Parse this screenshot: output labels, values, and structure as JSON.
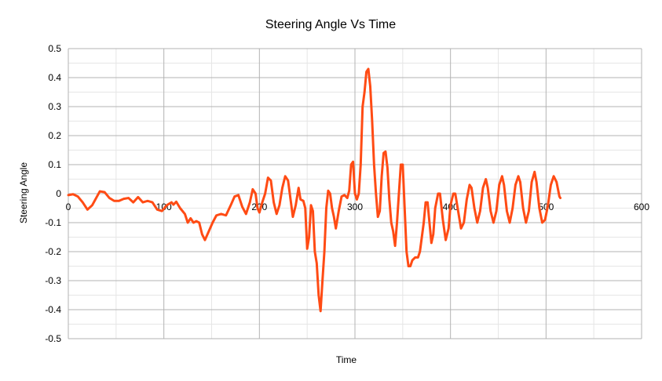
{
  "chart_data": {
    "type": "line",
    "title": "Steering Angle Vs Time",
    "xlabel": "Time",
    "ylabel": "Steering Angle",
    "xlim": [
      0,
      600
    ],
    "ylim": [
      -0.5,
      0.5
    ],
    "x_ticks": [
      "0",
      "100",
      "200",
      "300",
      "400",
      "500",
      "600"
    ],
    "y_ticks": [
      "0.5",
      "0.4",
      "0.3",
      "0.2",
      "0.1",
      "0",
      "-0.1",
      "-0.2",
      "-0.3",
      "-0.4",
      "-0.5"
    ],
    "grid": true,
    "legend": "none",
    "series": [
      {
        "color": "#ff4b14",
        "points": [
          [
            0,
            -0.005
          ],
          [
            5,
            -0.002
          ],
          [
            10,
            -0.01
          ],
          [
            15,
            -0.03
          ],
          [
            20,
            -0.055
          ],
          [
            25,
            -0.04
          ],
          [
            30,
            -0.01
          ],
          [
            33,
            0.008
          ],
          [
            38,
            0.005
          ],
          [
            43,
            -0.015
          ],
          [
            48,
            -0.025
          ],
          [
            53,
            -0.025
          ],
          [
            58,
            -0.018
          ],
          [
            63,
            -0.015
          ],
          [
            68,
            -0.03
          ],
          [
            73,
            -0.012
          ],
          [
            78,
            -0.03
          ],
          [
            83,
            -0.025
          ],
          [
            88,
            -0.03
          ],
          [
            93,
            -0.055
          ],
          [
            98,
            -0.06
          ],
          [
            103,
            -0.04
          ],
          [
            108,
            -0.03
          ],
          [
            110,
            -0.038
          ],
          [
            113,
            -0.028
          ],
          [
            117,
            -0.05
          ],
          [
            122,
            -0.07
          ],
          [
            125,
            -0.1
          ],
          [
            128,
            -0.085
          ],
          [
            131,
            -0.1
          ],
          [
            134,
            -0.095
          ],
          [
            137,
            -0.1
          ],
          [
            140,
            -0.14
          ],
          [
            143,
            -0.16
          ],
          [
            147,
            -0.13
          ],
          [
            151,
            -0.1
          ],
          [
            155,
            -0.075
          ],
          [
            160,
            -0.07
          ],
          [
            165,
            -0.075
          ],
          [
            170,
            -0.04
          ],
          [
            174,
            -0.01
          ],
          [
            178,
            -0.005
          ],
          [
            182,
            -0.045
          ],
          [
            186,
            -0.07
          ],
          [
            190,
            -0.03
          ],
          [
            193,
            0.015
          ],
          [
            196,
            0.0
          ],
          [
            198,
            -0.05
          ],
          [
            200,
            -0.065
          ],
          [
            203,
            -0.03
          ],
          [
            206,
            0.0
          ],
          [
            209,
            0.055
          ],
          [
            212,
            0.045
          ],
          [
            215,
            -0.03
          ],
          [
            218,
            -0.07
          ],
          [
            221,
            -0.04
          ],
          [
            224,
            0.02
          ],
          [
            227,
            0.06
          ],
          [
            230,
            0.045
          ],
          [
            233,
            -0.03
          ],
          [
            235,
            -0.08
          ],
          [
            238,
            -0.04
          ],
          [
            241,
            0.02
          ],
          [
            243,
            -0.02
          ],
          [
            246,
            -0.025
          ],
          [
            248,
            -0.05
          ],
          [
            250,
            -0.19
          ],
          [
            252,
            -0.15
          ],
          [
            254,
            -0.04
          ],
          [
            256,
            -0.06
          ],
          [
            258,
            -0.2
          ],
          [
            260,
            -0.24
          ],
          [
            262,
            -0.35
          ],
          [
            264,
            -0.405
          ],
          [
            266,
            -0.3
          ],
          [
            268,
            -0.2
          ],
          [
            270,
            -0.05
          ],
          [
            272,
            0.01
          ],
          [
            274,
            0.0
          ],
          [
            276,
            -0.05
          ],
          [
            278,
            -0.08
          ],
          [
            280,
            -0.12
          ],
          [
            283,
            -0.06
          ],
          [
            286,
            -0.01
          ],
          [
            289,
            -0.005
          ],
          [
            292,
            -0.015
          ],
          [
            294,
            0.01
          ],
          [
            296,
            0.1
          ],
          [
            298,
            0.11
          ],
          [
            300,
            0.0
          ],
          [
            302,
            -0.02
          ],
          [
            304,
            0.0
          ],
          [
            306,
            0.1
          ],
          [
            308,
            0.3
          ],
          [
            310,
            0.35
          ],
          [
            312,
            0.42
          ],
          [
            314,
            0.43
          ],
          [
            316,
            0.37
          ],
          [
            318,
            0.25
          ],
          [
            320,
            0.1
          ],
          [
            322,
            0.0
          ],
          [
            324,
            -0.08
          ],
          [
            326,
            -0.06
          ],
          [
            328,
            0.06
          ],
          [
            330,
            0.14
          ],
          [
            332,
            0.145
          ],
          [
            334,
            0.09
          ],
          [
            336,
            -0.02
          ],
          [
            338,
            -0.1
          ],
          [
            340,
            -0.13
          ],
          [
            342,
            -0.18
          ],
          [
            344,
            -0.1
          ],
          [
            346,
            0.0
          ],
          [
            348,
            0.1
          ],
          [
            350,
            0.1
          ],
          [
            352,
            -0.05
          ],
          [
            354,
            -0.2
          ],
          [
            356,
            -0.25
          ],
          [
            358,
            -0.25
          ],
          [
            360,
            -0.23
          ],
          [
            363,
            -0.22
          ],
          [
            366,
            -0.22
          ],
          [
            368,
            -0.2
          ],
          [
            370,
            -0.15
          ],
          [
            372,
            -0.1
          ],
          [
            374,
            -0.03
          ],
          [
            376,
            -0.03
          ],
          [
            378,
            -0.1
          ],
          [
            380,
            -0.17
          ],
          [
            382,
            -0.14
          ],
          [
            384,
            -0.05
          ],
          [
            387,
            0.0
          ],
          [
            389,
            0.0
          ],
          [
            392,
            -0.09
          ],
          [
            395,
            -0.16
          ],
          [
            398,
            -0.12
          ],
          [
            400,
            -0.04
          ],
          [
            403,
            0.0
          ],
          [
            405,
            0.0
          ],
          [
            408,
            -0.06
          ],
          [
            411,
            -0.12
          ],
          [
            414,
            -0.1
          ],
          [
            417,
            -0.02
          ],
          [
            420,
            0.03
          ],
          [
            422,
            0.02
          ],
          [
            425,
            -0.05
          ],
          [
            428,
            -0.1
          ],
          [
            431,
            -0.06
          ],
          [
            434,
            0.02
          ],
          [
            437,
            0.05
          ],
          [
            439,
            0.02
          ],
          [
            442,
            -0.06
          ],
          [
            445,
            -0.1
          ],
          [
            448,
            -0.06
          ],
          [
            451,
            0.03
          ],
          [
            454,
            0.06
          ],
          [
            456,
            0.03
          ],
          [
            459,
            -0.06
          ],
          [
            462,
            -0.1
          ],
          [
            465,
            -0.05
          ],
          [
            468,
            0.03
          ],
          [
            471,
            0.06
          ],
          [
            473,
            0.04
          ],
          [
            476,
            -0.05
          ],
          [
            479,
            -0.1
          ],
          [
            482,
            -0.06
          ],
          [
            485,
            0.04
          ],
          [
            488,
            0.075
          ],
          [
            490,
            0.04
          ],
          [
            493,
            -0.05
          ],
          [
            496,
            -0.1
          ],
          [
            499,
            -0.09
          ],
          [
            502,
            -0.04
          ],
          [
            505,
            0.03
          ],
          [
            508,
            0.06
          ],
          [
            511,
            0.04
          ],
          [
            514,
            -0.01
          ],
          [
            515,
            -0.015
          ]
        ]
      }
    ]
  }
}
